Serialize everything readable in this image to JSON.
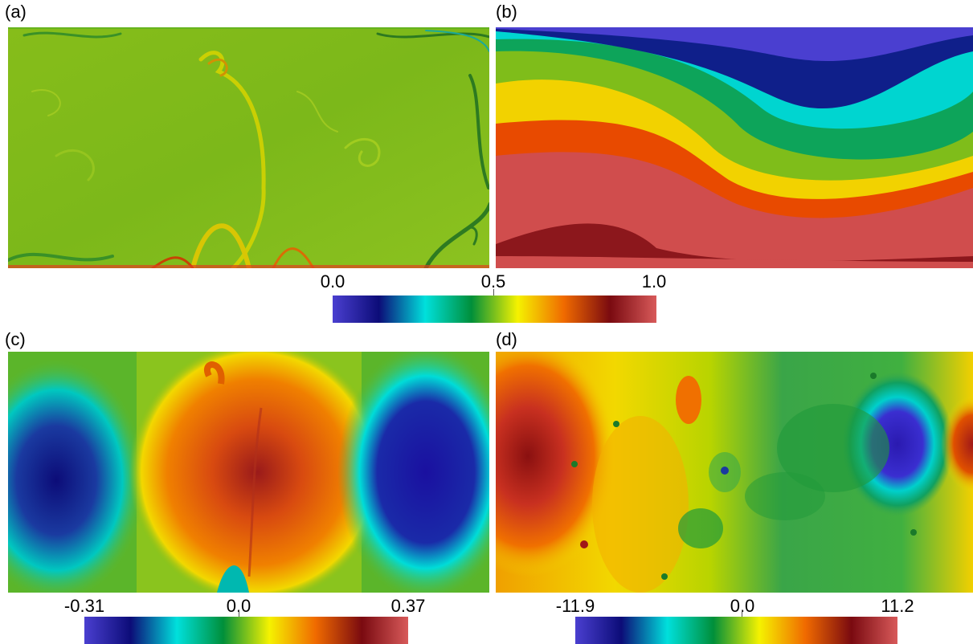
{
  "panels": {
    "a": {
      "label": "(a)"
    },
    "b": {
      "label": "(b)"
    },
    "c": {
      "label": "(c)"
    },
    "d": {
      "label": "(d)"
    }
  },
  "colorbar_top": {
    "ticks": [
      "0.0",
      "0.5",
      "1.0"
    ]
  },
  "colorbar_c": {
    "ticks": [
      "-0.31",
      "0.0",
      "0.37"
    ]
  },
  "colorbar_d": {
    "ticks": [
      "-11.9",
      "0.0",
      "11.2"
    ]
  },
  "colormap": [
    "#4a3fd0",
    "#0c0c78",
    "#00e0dc",
    "#008f3a",
    "#f5f200",
    "#f06a00",
    "#7a0a10",
    "#d85a5a"
  ]
}
